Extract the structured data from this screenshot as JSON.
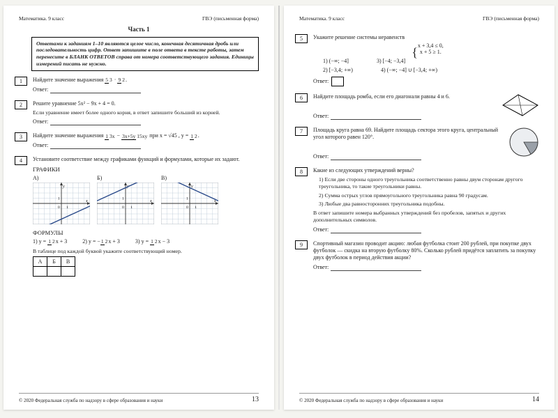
{
  "header": {
    "left": "Математика. 9 класс",
    "right": "ГВЭ (письменная форма)"
  },
  "part1_title": "Часть 1",
  "instructions": "Ответами к заданиям 1–10 являются целое число, конечная десятичная дробь или последовательность цифр. Ответ запишите в поле ответа в тексте работы, затем перенесите в БЛАНК ОТВЕТОВ справа от номера соответствующего задания. Единицы измерений писать не нужно.",
  "answer_label": "Ответ:",
  "footer": {
    "copyright": "© 2020 Федеральная служба по надзору в сфере образования и науки",
    "page_left": "13",
    "page_right": "14"
  },
  "t1": {
    "num": "1",
    "text_a": "Найдите значение выражения ",
    "f1n": "5",
    "f1d": "3",
    "f2n": "9",
    "f2d": "2",
    "dot": " · "
  },
  "t2": {
    "num": "2",
    "text_a": "Решите уравнение 5x² − 9x + 4 = 0.",
    "text_b": "Если уравнение имеет более одного корня, в ответ запишите больший из корней."
  },
  "t3": {
    "num": "3",
    "text_a": "Найдите значение выражения ",
    "f1n": "1",
    "f1d": "3x",
    "minus": " − ",
    "f2n": "3x+5y",
    "f2d": "15xy",
    "tail_a": " при x = √45 , y = ",
    "ftn": "1",
    "ftd": "2",
    "period": "."
  },
  "t4": {
    "num": "4",
    "text": "Установите соответствие между графиками функций и формулами, которые их задают.",
    "hdr_g": "ГРАФИКИ",
    "A": "А)",
    "B": "Б)",
    "V": "В)",
    "hdr_f": "ФОРМУЛЫ",
    "f1_lead": "1)  y = ",
    "f1n": "1",
    "f1d": "2",
    "f1_tail": "x + 3",
    "f2_lead": "2)  y = −",
    "f2n": "1",
    "f2d": "2",
    "f2_tail": "x + 3",
    "f3_lead": "3)  y = ",
    "f3n": "1",
    "f3d": "2",
    "f3_tail": "x − 3",
    "tbl_note": "В таблице под каждой буквой укажите соответствующий номер.",
    "hA": "А",
    "hB": "Б",
    "hV": "В"
  },
  "t5": {
    "num": "5",
    "text": "Укажите решение системы неравенств",
    "eq1": "x + 3,4 ≤ 0,",
    "eq2": "x + 5 ≥ 1.",
    "o1": "1)  (−∞; −4]",
    "o2": "2)  [−3,4; +∞)",
    "o3": "3)  [−4; −3,4]",
    "o4": "4)  (−∞; −4] ∪ [−3,4; +∞)"
  },
  "t6": {
    "num": "6",
    "text": "Найдите площадь ромба, если его диагонали равны 4 и 6."
  },
  "t7": {
    "num": "7",
    "text": "Площадь круга равна 69. Найдите площадь сектора этого круга, центральный угол которого равен 120°."
  },
  "t8": {
    "num": "8",
    "text": "Какие из следующих утверждений верны?",
    "s1": "1) Если две стороны одного треугольника соответственно равны двум сторонам другого треугольника, то такие треугольники равны.",
    "s2": "2) Сумма острых углов прямоугольного треугольника равна 90 градусам.",
    "s3": "3) Любые два равносторонних треугольника подобны.",
    "note": "В ответ запишите номера выбранных утверждений без пробелов, запятых и других дополнительных символов."
  },
  "t9": {
    "num": "9",
    "text": "Спортивный магазин проводит акцию: любая футболка стоит 200 рублей, при покупке двух футболок — скидка на вторую футболку 80%. Сколько рублей придётся заплатить за покупку двух футболок в период действия акции?"
  },
  "graphs": {
    "grid_color": "#b8c6d6",
    "line_color": "#2a4a8a",
    "axis_color": "#333",
    "A": {
      "slope": 0.5,
      "intercept": -3
    },
    "B": {
      "slope": 0.5,
      "intercept": 3
    },
    "V": {
      "slope": -0.5,
      "intercept": 3
    }
  },
  "rhombus": {
    "stroke": "#000",
    "fill": "none"
  },
  "sector": {
    "stroke": "#333",
    "fill_slice": "#9aa0a8",
    "fill_rest": "#eceef1",
    "angle_deg": 120
  }
}
